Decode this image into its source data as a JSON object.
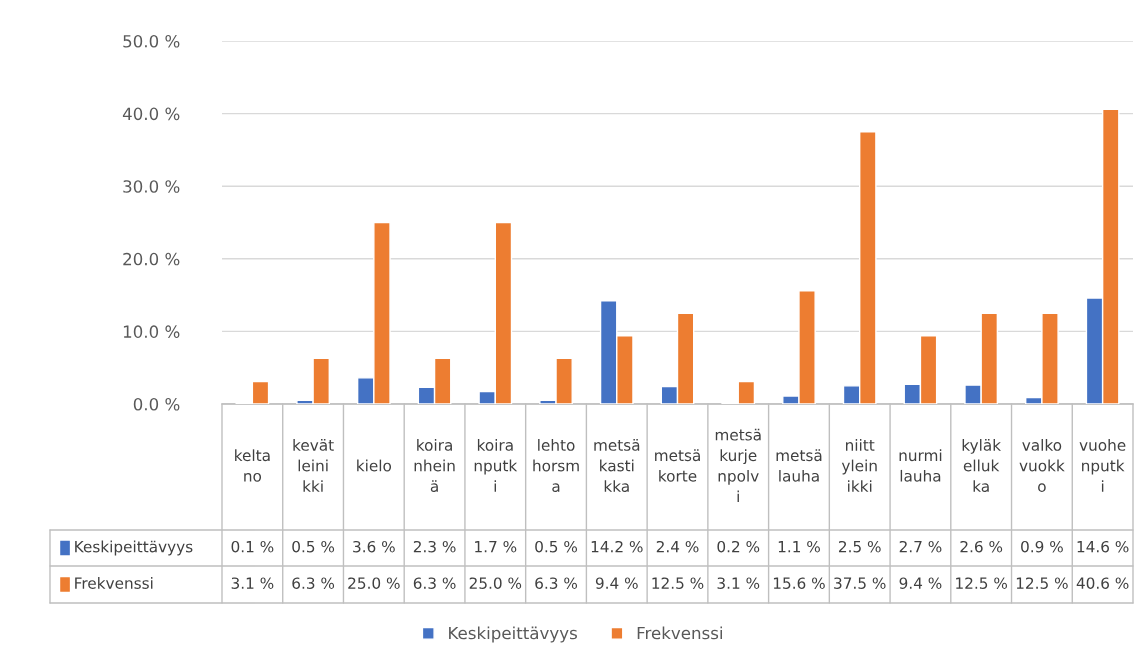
{
  "chart_data": {
    "type": "bar",
    "categories": [
      "keltano",
      "kevätleinikki",
      "kielo",
      "koiranheinä",
      "koiranputki",
      "lehtohorsma",
      "metsäkastikka",
      "metsäkorte",
      "metsäkurjenpolvi",
      "metsälauha",
      "niittyleinikki",
      "nurmilauha",
      "kyläkellukka",
      "valkovuokko",
      "vuohenputki"
    ],
    "series": [
      {
        "name": "Keskipeittävyys",
        "color": "#4472c4",
        "values": [
          0.1,
          0.5,
          3.6,
          2.3,
          1.7,
          0.5,
          14.2,
          2.4,
          0.2,
          1.1,
          2.5,
          2.7,
          2.6,
          0.9,
          14.6
        ],
        "value_labels": [
          "0.1 %",
          "0.5 %",
          "3.6 %",
          "2.3 %",
          "1.7 %",
          "0.5 %",
          "14.2 %",
          "2.4 %",
          "0.2 %",
          "1.1 %",
          "2.5 %",
          "2.7 %",
          "2.6 %",
          "0.9 %",
          "14.6 %"
        ]
      },
      {
        "name": "Frekvenssi",
        "color": "#ed7d31",
        "values": [
          3.1,
          6.3,
          25.0,
          6.3,
          25.0,
          6.3,
          9.4,
          12.5,
          3.1,
          15.6,
          37.5,
          9.4,
          12.5,
          12.5,
          40.6
        ],
        "value_labels": [
          "3.1 %",
          "6.3 %",
          "25.0 %",
          "6.3 %",
          "25.0 %",
          "6.3 %",
          "9.4 %",
          "12.5 %",
          "3.1 %",
          "15.6 %",
          "37.5 %",
          "9.4 %",
          "12.5 %",
          "12.5 %",
          "40.6 %"
        ]
      }
    ],
    "ylim": [
      0,
      50
    ],
    "yticks": [
      {
        "value": 0,
        "label": "0.0 %"
      },
      {
        "value": 10,
        "label": "10.0 %"
      },
      {
        "value": 20,
        "label": "20.0 %"
      },
      {
        "value": 30,
        "label": "30.0 %"
      },
      {
        "value": 40,
        "label": "40.0 %"
      },
      {
        "value": 50,
        "label": "50.0 %"
      }
    ],
    "grid": "y",
    "legend": "bottom"
  }
}
